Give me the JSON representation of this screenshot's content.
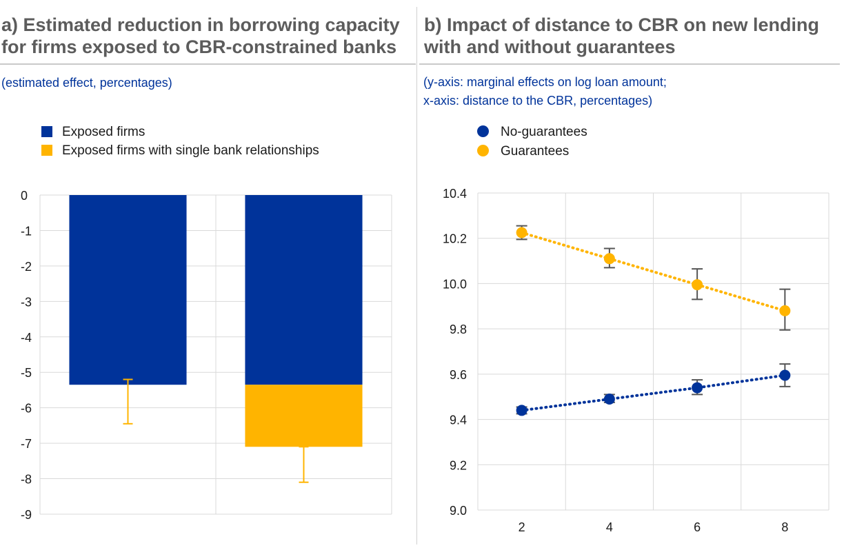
{
  "colors": {
    "blue": "#00339a",
    "yellow": "#ffb400",
    "title_gray": "#5c5c5c",
    "grid": "#d9d9d9",
    "errbar_gray": "#555555"
  },
  "panel_a": {
    "title_line1": "a) Estimated reduction in borrowing capacity",
    "title_line2": "for firms exposed to CBR-constrained banks",
    "subtitle": "(estimated effect, percentages)",
    "legend": [
      "Exposed firms",
      "Exposed firms with single bank relationships"
    ]
  },
  "panel_b": {
    "title_line1": "b) Impact of distance to CBR on new lending",
    "title_line2": "with and without guarantees",
    "subtitle_line1": "(y-axis: marginal effects on log loan amount;",
    "subtitle_line2": "x-axis: distance to the CBR, percentages)",
    "legend": [
      "No-guarantees",
      "Guarantees"
    ]
  },
  "chart_data": [
    {
      "type": "bar",
      "stacked": true,
      "categories": [
        "",
        ""
      ],
      "series": [
        {
          "name": "Exposed firms",
          "values": [
            -5.35,
            -5.35
          ],
          "color": "#00339a"
        },
        {
          "name": "Exposed firms with single bank relationships",
          "values": [
            0,
            -1.75
          ],
          "color": "#ffb400"
        }
      ],
      "error_bars": [
        {
          "category_index": 0,
          "low": -6.45,
          "high": -5.2
        },
        {
          "category_index": 1,
          "low": -8.1,
          "high": -7.1
        }
      ],
      "ylim": [
        -9,
        0
      ],
      "yticks": [
        0,
        -1,
        -2,
        -3,
        -4,
        -5,
        -6,
        -7,
        -8,
        -9
      ],
      "grid": true,
      "legend_position": "top-left"
    },
    {
      "type": "scatter",
      "x": [
        2,
        4,
        6,
        8
      ],
      "xticks": [
        2,
        4,
        6,
        8
      ],
      "xlim": [
        1,
        9
      ],
      "ylim": [
        9.0,
        10.4
      ],
      "yticks": [
        "9.0",
        "9.2",
        "9.4",
        "9.6",
        "9.8",
        "10.0",
        "10.2",
        "10.4"
      ],
      "series": [
        {
          "name": "No-guarantees",
          "values": [
            9.44,
            9.49,
            9.54,
            9.595
          ],
          "err_low": [
            9.425,
            9.475,
            9.51,
            9.545
          ],
          "err_high": [
            9.455,
            9.51,
            9.575,
            9.645
          ],
          "color": "#00339a"
        },
        {
          "name": "Guarantees",
          "values": [
            10.225,
            10.11,
            9.995,
            9.88
          ],
          "err_low": [
            10.195,
            10.07,
            9.93,
            9.795
          ],
          "err_high": [
            10.255,
            10.155,
            10.065,
            9.975
          ],
          "color": "#ffb400"
        }
      ],
      "trend_lines": "dotted",
      "grid": true,
      "legend_position": "top-left"
    }
  ]
}
